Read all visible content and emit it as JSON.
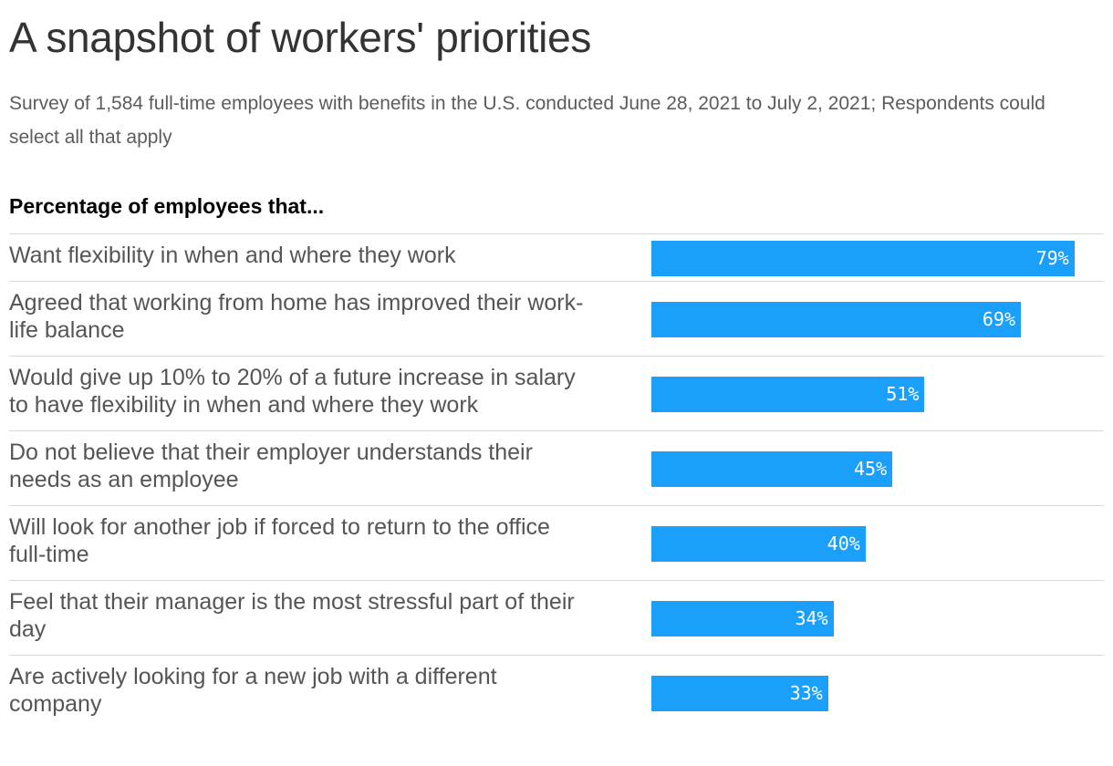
{
  "title": "A snapshot of workers' priorities",
  "subtitle": "Survey of 1,584 full-time employees with benefits in the U.S. conducted June 28, 2021 to July 2, 2021; Respondents could select all that apply",
  "table_header": "Percentage of employees that...",
  "colors": {
    "bar": "#1a9ffb",
    "bar_text": "#ffffff",
    "label_text": "#555555",
    "row_divider": "#d9d9d9"
  },
  "chart_data": {
    "type": "bar",
    "orientation": "horizontal",
    "title": "A snapshot of workers' priorities",
    "subtitle": "Survey of 1,584 full-time employees with benefits in the U.S. conducted June 28, 2021 to July 2, 2021; Respondents could select all that apply",
    "column_header": "Percentage of employees that...",
    "unit": "%",
    "xlim": [
      0,
      100
    ],
    "categories": [
      "Want flexibility in when and where they work",
      "Agreed that working from home has improved their work-life balance",
      "Would give up 10% to 20% of a future increase in salary to have flexibility in when and where they work",
      "Do not believe that their employer understands their needs as an employee",
      "Will look for another job if forced to return to the office full-time",
      "Feel that their manager is the most stressful part of their day",
      "Are actively looking for a new job with a different company"
    ],
    "values": [
      79,
      69,
      51,
      45,
      40,
      34,
      33
    ],
    "value_labels": [
      "79%",
      "69%",
      "51%",
      "45%",
      "40%",
      "34%",
      "33%"
    ],
    "grid": false,
    "legend": "none"
  }
}
